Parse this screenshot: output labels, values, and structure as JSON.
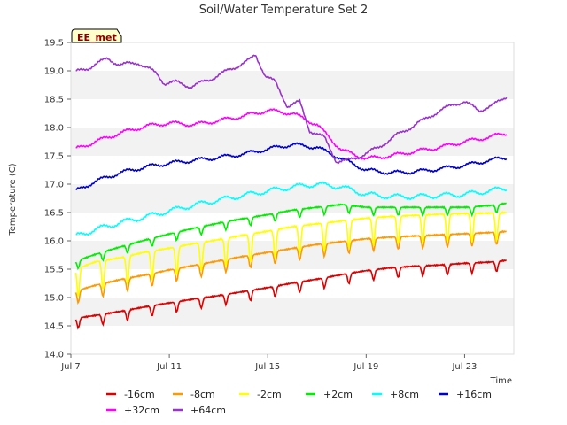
{
  "chart_data": {
    "type": "line",
    "title": "Soil/Water Temperature Set 2",
    "xlabel": "Time",
    "ylabel": "Temperature (C)",
    "badge": "EE_met",
    "xlim": [
      7.0,
      25.0
    ],
    "ylim": [
      14.0,
      19.5
    ],
    "yticks": [
      14.0,
      14.5,
      15.0,
      15.5,
      16.0,
      16.5,
      17.0,
      17.5,
      18.0,
      18.5,
      19.0,
      19.5
    ],
    "ytick_labels": [
      "14.0",
      "14.5",
      "15.0",
      "15.5",
      "16.0",
      "16.5",
      "17.0",
      "17.5",
      "18.0",
      "18.5",
      "19.0",
      "19.5"
    ],
    "xticks": [
      7,
      11,
      15,
      19,
      23
    ],
    "xtick_labels": [
      "Jul 7",
      "Jul 11",
      "Jul 15",
      "Jul 19",
      "Jul 23"
    ],
    "grid": "alternating horizontal bands",
    "legend_position": "bottom",
    "x_unit": "day of July",
    "series": [
      {
        "name": "-16cm",
        "color": "#dd0000",
        "diurnal": 0.18,
        "x": [
          7.2,
          8,
          9,
          10,
          11,
          12,
          13,
          14,
          15,
          16,
          17,
          18,
          19,
          20,
          21,
          22,
          23,
          24,
          24.7
        ],
        "y": [
          14.58,
          14.63,
          14.7,
          14.78,
          14.85,
          14.92,
          14.98,
          15.05,
          15.12,
          15.2,
          15.27,
          15.35,
          15.42,
          15.47,
          15.5,
          15.52,
          15.55,
          15.57,
          15.6
        ]
      },
      {
        "name": "-8cm",
        "color": "#ff9900",
        "diurnal": 0.22,
        "x": [
          7.2,
          8,
          9,
          10,
          11,
          12,
          13,
          14,
          15,
          16,
          17,
          18,
          19,
          20,
          21,
          22,
          23,
          24,
          24.7
        ],
        "y": [
          15.05,
          15.15,
          15.25,
          15.33,
          15.42,
          15.5,
          15.58,
          15.66,
          15.73,
          15.8,
          15.87,
          15.92,
          15.97,
          16.0,
          16.02,
          16.04,
          16.06,
          16.08,
          16.1
        ]
      },
      {
        "name": "-2cm",
        "color": "#ffff00",
        "diurnal": 0.5,
        "x": [
          7.2,
          8,
          9,
          10,
          11,
          12,
          13,
          14,
          15,
          16,
          17,
          18,
          19,
          20,
          21,
          22,
          23,
          24,
          24.7
        ],
        "y": [
          15.35,
          15.48,
          15.55,
          15.65,
          15.72,
          15.8,
          15.87,
          15.95,
          16.02,
          16.1,
          16.15,
          16.2,
          16.25,
          16.28,
          16.3,
          16.32,
          16.33,
          16.34,
          16.35
        ]
      },
      {
        "name": "+2cm",
        "color": "#00ee00",
        "diurnal": 0.14,
        "x": [
          7.2,
          8,
          9,
          10,
          11,
          12,
          13,
          14,
          15,
          16,
          17,
          18,
          19,
          20,
          21,
          22,
          23,
          24,
          24.7
        ],
        "y": [
          15.6,
          15.72,
          15.85,
          15.97,
          16.08,
          16.18,
          16.27,
          16.35,
          16.42,
          16.5,
          16.55,
          16.6,
          16.55,
          16.55,
          16.55,
          16.55,
          16.55,
          16.58,
          16.62
        ]
      },
      {
        "name": "+8cm",
        "color": "#00ffff",
        "diurnal": 0.04,
        "x": [
          7.2,
          8,
          9,
          10,
          11,
          12,
          13,
          14,
          15,
          16,
          17,
          18,
          19,
          20,
          21,
          22,
          23,
          24,
          24.7
        ],
        "y": [
          16.08,
          16.2,
          16.32,
          16.42,
          16.53,
          16.63,
          16.72,
          16.8,
          16.88,
          16.95,
          17.0,
          16.95,
          16.82,
          16.78,
          16.78,
          16.8,
          16.82,
          16.88,
          16.93
        ]
      },
      {
        "name": "+16cm",
        "color": "#0000cc",
        "diurnal": 0.03,
        "x": [
          7.2,
          8,
          9,
          10,
          11,
          12,
          13,
          14,
          15,
          16,
          17,
          18,
          19,
          20,
          21,
          22,
          23,
          24,
          24.7
        ],
        "y": [
          16.88,
          17.05,
          17.2,
          17.3,
          17.37,
          17.42,
          17.47,
          17.53,
          17.62,
          17.7,
          17.65,
          17.45,
          17.25,
          17.2,
          17.22,
          17.27,
          17.33,
          17.42,
          17.47
        ]
      },
      {
        "name": "+32cm",
        "color": "#ff00ff",
        "diurnal": 0.03,
        "x": [
          7.2,
          8,
          9,
          10,
          11,
          12,
          13,
          14,
          15,
          16,
          17,
          18,
          19,
          20,
          21,
          22,
          23,
          24,
          24.7
        ],
        "y": [
          17.62,
          17.75,
          17.9,
          18.02,
          18.08,
          18.05,
          18.12,
          18.2,
          18.3,
          18.25,
          18.05,
          17.6,
          17.45,
          17.5,
          17.58,
          17.65,
          17.75,
          17.83,
          17.9
        ]
      },
      {
        "name": "+64cm",
        "color": "#9933cc",
        "diurnal": 0.03,
        "x": [
          7.2,
          7.7,
          8.5,
          9.0,
          9.7,
          10.5,
          10.8,
          11.3,
          11.9,
          12.8,
          13.6,
          14.3,
          14.5,
          14.9,
          15.3,
          15.8,
          16.3,
          16.7,
          17.3,
          17.8,
          18.3,
          18.8,
          19.5,
          20.3,
          21.0,
          21.8,
          22.6,
          23.0,
          23.6,
          24.2,
          24.7
        ],
        "y": [
          18.98,
          19.05,
          19.22,
          19.1,
          19.15,
          18.95,
          18.78,
          18.8,
          18.72,
          18.88,
          19.05,
          19.2,
          19.28,
          18.92,
          18.8,
          18.38,
          18.45,
          17.95,
          17.82,
          17.4,
          17.42,
          17.5,
          17.65,
          17.88,
          18.05,
          18.25,
          18.42,
          18.45,
          18.3,
          18.4,
          18.55
        ]
      }
    ]
  }
}
